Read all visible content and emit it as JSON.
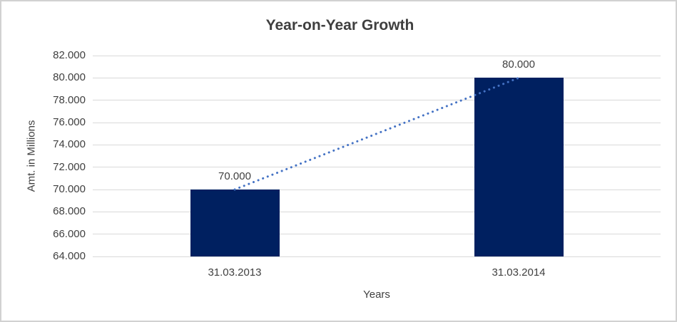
{
  "window": {
    "background": "#ffffff",
    "border_color": "#d1d1d1"
  },
  "chart_data": {
    "type": "bar",
    "title": "Year-on-Year Growth",
    "xlabel": "Years",
    "ylabel": "Amt. in Millions",
    "categories": [
      "31.03.2013",
      "31.03.2014"
    ],
    "values": [
      70000,
      80000
    ],
    "data_labels": [
      "70.000",
      "80.000"
    ],
    "ylim": [
      64000,
      82000
    ],
    "y_ticks": [
      {
        "value": 64000,
        "label": "64.000"
      },
      {
        "value": 66000,
        "label": "66.000"
      },
      {
        "value": 68000,
        "label": "68.000"
      },
      {
        "value": 70000,
        "label": "70.000"
      },
      {
        "value": 72000,
        "label": "72.000"
      },
      {
        "value": 74000,
        "label": "74.000"
      },
      {
        "value": 76000,
        "label": "76.000"
      },
      {
        "value": 78000,
        "label": "78.000"
      },
      {
        "value": 80000,
        "label": "80.000"
      },
      {
        "value": 82000,
        "label": "82.000"
      }
    ],
    "grid": true,
    "legend": "none",
    "bar_color": "#002060",
    "gridline_color": "#d9d9d9",
    "text_color": "#404040",
    "title_color": "#3f3f3f",
    "trendline": {
      "type": "linear",
      "style": "dotted",
      "color": "#4472c4"
    }
  }
}
